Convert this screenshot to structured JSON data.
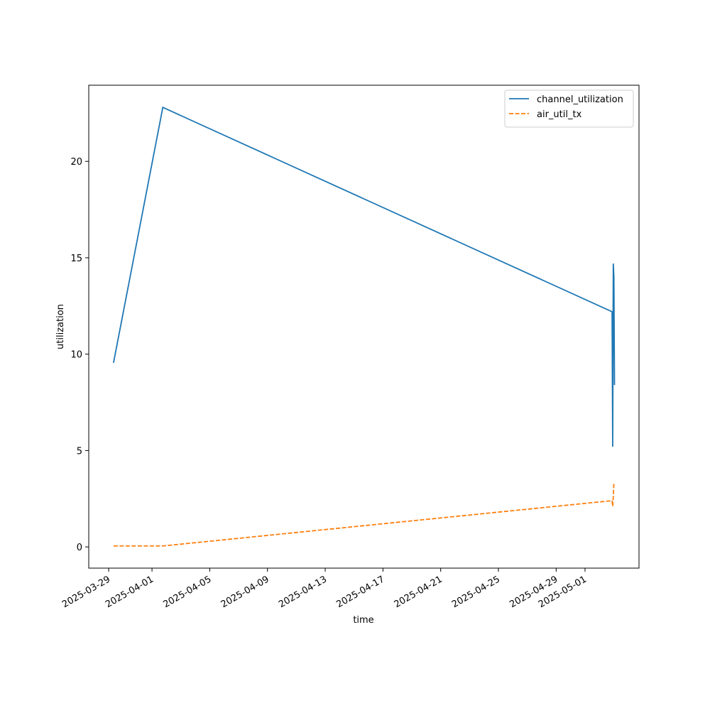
{
  "chart_data": {
    "type": "line",
    "x_label": "time",
    "y_label": "utilization",
    "x": [
      "2025-03-29 08:00",
      "2025-04-01 18:00",
      "2025-05-02 21:00",
      "2025-05-02 22:00",
      "2025-05-02 23:00",
      "2025-05-03 00:00",
      "2025-05-03 01:00"
    ],
    "series": [
      {
        "name": "channel_utilization",
        "color": "#1f77b4",
        "dash": "solid",
        "values": [
          9.55,
          22.8,
          12.2,
          5.2,
          14.7,
          14.0,
          8.4
        ]
      },
      {
        "name": "air_util_tx",
        "color": "#ff7f0e",
        "dash": "dashed",
        "values": [
          0.05,
          0.05,
          2.4,
          2.1,
          2.6,
          3.3,
          3.3
        ]
      }
    ],
    "xlim": [
      "2025-03-27 14:50",
      "2025-05-04 17:45"
    ],
    "xticks": [
      "2025-03-29",
      "2025-04-01",
      "2025-04-05",
      "2025-04-09",
      "2025-04-13",
      "2025-04-17",
      "2025-04-21",
      "2025-04-25",
      "2025-04-29",
      "2025-05-01"
    ],
    "ylim": [
      -1.1,
      23.95
    ],
    "yticks": [
      0,
      5,
      10,
      15,
      20
    ],
    "grid": false,
    "legend": "upper right"
  }
}
